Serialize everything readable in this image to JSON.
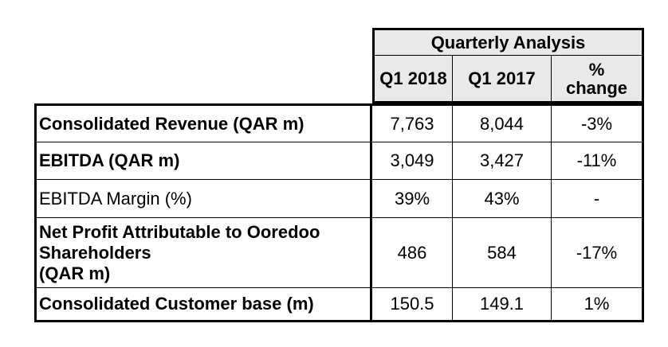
{
  "header": {
    "group_title": "Quarterly Analysis",
    "columns": [
      "Q1 2018",
      "Q1 2017",
      "%\nchange"
    ]
  },
  "rows": [
    {
      "label": "Consolidated Revenue (QAR m)",
      "bold": true,
      "q1_2018": "7,763",
      "q1_2017": "8,044",
      "change": "-3%"
    },
    {
      "label": "EBITDA (QAR m)",
      "bold": true,
      "q1_2018": "3,049",
      "q1_2017": "3,427",
      "change": "-11%"
    },
    {
      "label": "EBITDA Margin (%)",
      "bold": false,
      "q1_2018": "39%",
      "q1_2017": "43%",
      "change": "-"
    },
    {
      "label": "Net Profit Attributable to Ooredoo Shareholders (QAR m)",
      "bold": true,
      "q1_2018": "486",
      "q1_2017": "584",
      "change": "-17%"
    },
    {
      "label": "Consolidated Customer base (m)",
      "bold": true,
      "q1_2018": "150.5",
      "q1_2017": "149.1",
      "change": "1%"
    }
  ]
}
